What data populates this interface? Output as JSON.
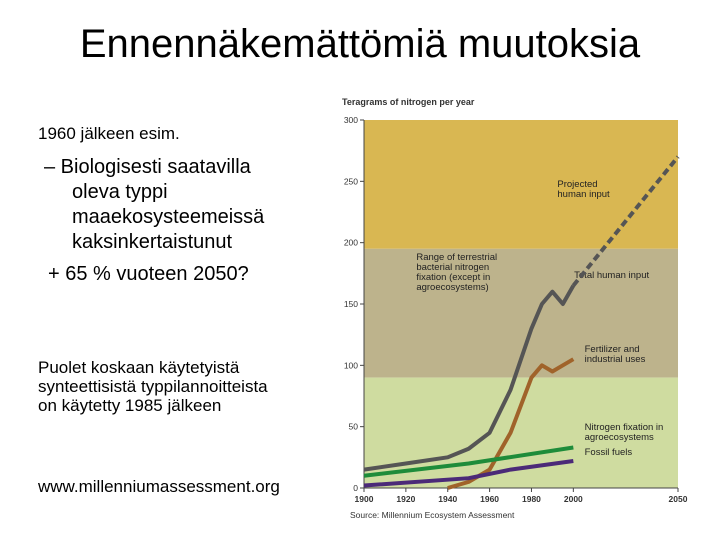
{
  "slide": {
    "title": "Ennennäkemättömiä muutoksia",
    "intro": "1960 jälkeen esim.",
    "bullet": [
      "– Biologisesti saatavilla",
      "oleva typpi",
      "maaekosysteemeissä",
      "kaksinkertaistunut"
    ],
    "forecast": "+ 65 % vuoteen 2050?",
    "note": [
      "Puolet  koskaan käytetyistä",
      "synteettisistä typpilannoitteista",
      "on käytetty 1985 jälkeen"
    ],
    "url": "www.millenniumassessment.org"
  },
  "chart_data": {
    "type": "line",
    "y_label": "Teragrams of nitrogen per year",
    "source": "Source: Millennium Ecosystem Assessment",
    "xlim": [
      1900,
      2050
    ],
    "xticks": [
      1900,
      1920,
      1940,
      1960,
      1980,
      2000,
      2050
    ],
    "ylim": [
      0,
      300
    ],
    "yticks": [
      0,
      50,
      100,
      150,
      200,
      250,
      300
    ],
    "bands": [
      {
        "range": [
          195,
          300
        ],
        "color": "#d9b752"
      },
      {
        "range": [
          90,
          195
        ],
        "color": "#bdb38c",
        "name": "Range of terrestrial bacterial nitrogen fixation (except in agroecosystems)"
      },
      {
        "range": [
          0,
          90
        ],
        "color": "#cfdca0"
      }
    ],
    "series": [
      {
        "name": "Total human input",
        "color": "#555555",
        "x": [
          1900,
          1920,
          1940,
          1950,
          1960,
          1970,
          1980,
          1985,
          1990,
          1995,
          2000
        ],
        "values": [
          15,
          20,
          25,
          32,
          45,
          80,
          130,
          150,
          160,
          150,
          165
        ]
      },
      {
        "name": "Projected human input",
        "color": "#555555",
        "dashed": true,
        "x": [
          2000,
          2050
        ],
        "values": [
          165,
          270
        ]
      },
      {
        "name": "Fertilizer and industrial uses",
        "color": "#a0632a",
        "x": [
          1940,
          1950,
          1960,
          1970,
          1980,
          1985,
          1990,
          1995,
          2000
        ],
        "values": [
          0,
          5,
          15,
          45,
          90,
          100,
          95,
          100,
          105
        ]
      },
      {
        "name": "Nitrogen fixation in agroecosystems",
        "color": "#1e8c3a",
        "x": [
          1900,
          1950,
          2000
        ],
        "values": [
          10,
          20,
          33
        ]
      },
      {
        "name": "Fossil fuels",
        "color": "#4b2a78",
        "x": [
          1900,
          1950,
          1970,
          2000
        ],
        "values": [
          2,
          8,
          15,
          22
        ]
      }
    ]
  }
}
